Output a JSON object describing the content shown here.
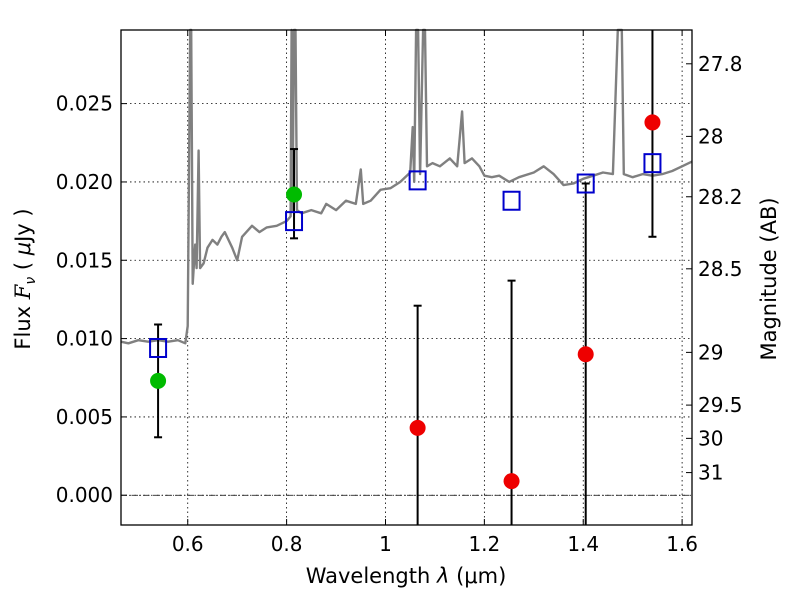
{
  "chart_data": {
    "type": "scatter",
    "xlabel": "Wavelength  λ (μm)",
    "ylabel": "Flux  F_ν  ( μJy )",
    "ylabel_parts": {
      "pre": "Flux  ",
      "var": "F",
      "sub": "ν",
      "unit_pre": "  ( ",
      "unit_mu": "μ",
      "unit_post": "Jy )"
    },
    "xlabel_parts": {
      "pre": "Wavelength  ",
      "var": "λ",
      "unit": " (μm)"
    },
    "y2label": "Magnitude (AB)",
    "xlim": [
      0.465,
      1.62
    ],
    "ylim": [
      -0.0019,
      0.0297
    ],
    "grid": true,
    "xticks": [
      {
        "value": 0.6,
        "label": "0.6"
      },
      {
        "value": 0.8,
        "label": "0.8"
      },
      {
        "value": 1.0,
        "label": "1"
      },
      {
        "value": 1.2,
        "label": "1.2"
      },
      {
        "value": 1.4,
        "label": "1.4"
      },
      {
        "value": 1.6,
        "label": "1.6"
      }
    ],
    "yticks": [
      {
        "value": 0.0,
        "label": "0.000"
      },
      {
        "value": 0.005,
        "label": "0.005"
      },
      {
        "value": 0.01,
        "label": "0.010"
      },
      {
        "value": 0.015,
        "label": "0.015"
      },
      {
        "value": 0.02,
        "label": "0.020"
      },
      {
        "value": 0.025,
        "label": "0.025"
      }
    ],
    "y2ticks": [
      {
        "mag": 27.8,
        "label": "27.8"
      },
      {
        "mag": 28.0,
        "label": "28"
      },
      {
        "mag": 28.2,
        "label": "28.2"
      },
      {
        "mag": 28.5,
        "label": "28.5"
      },
      {
        "mag": 29.0,
        "label": "29"
      },
      {
        "mag": 29.5,
        "label": "29.5"
      },
      {
        "mag": 30.0,
        "label": "30"
      },
      {
        "mag": 31.0,
        "label": "31"
      }
    ],
    "model_spectrum": {
      "name": "template spectrum",
      "color": "#808080",
      "points": [
        [
          0.465,
          0.0098
        ],
        [
          0.48,
          0.0097
        ],
        [
          0.5,
          0.0099
        ],
        [
          0.52,
          0.0098
        ],
        [
          0.54,
          0.0099
        ],
        [
          0.56,
          0.0098
        ],
        [
          0.58,
          0.0099
        ],
        [
          0.595,
          0.0097
        ],
        [
          0.6,
          0.0108
        ],
        [
          0.605,
          0.0298
        ],
        [
          0.607,
          0.0298
        ],
        [
          0.61,
          0.0135
        ],
        [
          0.615,
          0.016
        ],
        [
          0.618,
          0.0145
        ],
        [
          0.622,
          0.022
        ],
        [
          0.625,
          0.0145
        ],
        [
          0.632,
          0.0148
        ],
        [
          0.64,
          0.0158
        ],
        [
          0.65,
          0.0163
        ],
        [
          0.66,
          0.016
        ],
        [
          0.668,
          0.0165
        ],
        [
          0.675,
          0.0168
        ],
        [
          0.69,
          0.0158
        ],
        [
          0.7,
          0.015
        ],
        [
          0.71,
          0.0165
        ],
        [
          0.73,
          0.0172
        ],
        [
          0.745,
          0.0168
        ],
        [
          0.76,
          0.0171
        ],
        [
          0.78,
          0.0172
        ],
        [
          0.8,
          0.0175
        ],
        [
          0.808,
          0.0178
        ],
        [
          0.81,
          0.0298
        ],
        [
          0.812,
          0.0182
        ],
        [
          0.815,
          0.0298
        ],
        [
          0.818,
          0.0298
        ],
        [
          0.821,
          0.0182
        ],
        [
          0.83,
          0.018
        ],
        [
          0.85,
          0.0182
        ],
        [
          0.87,
          0.018
        ],
        [
          0.88,
          0.0186
        ],
        [
          0.9,
          0.0182
        ],
        [
          0.92,
          0.0188
        ],
        [
          0.94,
          0.0186
        ],
        [
          0.95,
          0.0208
        ],
        [
          0.955,
          0.0186
        ],
        [
          0.97,
          0.0188
        ],
        [
          0.99,
          0.0195
        ],
        [
          1.01,
          0.0196
        ],
        [
          1.03,
          0.02
        ],
        [
          1.05,
          0.0206
        ],
        [
          1.055,
          0.0235
        ],
        [
          1.058,
          0.02
        ],
        [
          1.062,
          0.0298
        ],
        [
          1.066,
          0.0298
        ],
        [
          1.07,
          0.0205
        ],
        [
          1.076,
          0.0298
        ],
        [
          1.08,
          0.0298
        ],
        [
          1.084,
          0.021
        ],
        [
          1.095,
          0.0212
        ],
        [
          1.11,
          0.021
        ],
        [
          1.13,
          0.0215
        ],
        [
          1.145,
          0.021
        ],
        [
          1.155,
          0.0245
        ],
        [
          1.16,
          0.0212
        ],
        [
          1.175,
          0.0215
        ],
        [
          1.19,
          0.021
        ],
        [
          1.2,
          0.0204
        ],
        [
          1.215,
          0.0203
        ],
        [
          1.23,
          0.0204
        ],
        [
          1.25,
          0.02
        ],
        [
          1.27,
          0.0203
        ],
        [
          1.3,
          0.0206
        ],
        [
          1.32,
          0.021
        ],
        [
          1.34,
          0.0205
        ],
        [
          1.36,
          0.0198
        ],
        [
          1.38,
          0.0199
        ],
        [
          1.4,
          0.0202
        ],
        [
          1.42,
          0.0204
        ],
        [
          1.44,
          0.0206
        ],
        [
          1.46,
          0.0205
        ],
        [
          1.47,
          0.0298
        ],
        [
          1.478,
          0.0298
        ],
        [
          1.482,
          0.0205
        ],
        [
          1.5,
          0.0203
        ],
        [
          1.52,
          0.0205
        ],
        [
          1.54,
          0.0204
        ],
        [
          1.56,
          0.0205
        ],
        [
          1.58,
          0.0207
        ],
        [
          1.6,
          0.021
        ],
        [
          1.62,
          0.0213
        ]
      ]
    },
    "series": [
      {
        "name": "model photometry",
        "marker": "open-square",
        "color": "#0000cc",
        "points": [
          {
            "x": 0.54,
            "y": 0.0094
          },
          {
            "x": 0.815,
            "y": 0.0175
          },
          {
            "x": 1.065,
            "y": 0.0201
          },
          {
            "x": 1.255,
            "y": 0.0188
          },
          {
            "x": 1.405,
            "y": 0.0199
          },
          {
            "x": 1.54,
            "y": 0.0212
          }
        ]
      },
      {
        "name": "detections",
        "marker": "filled-circle",
        "color": "#00bb00",
        "points": [
          {
            "x": 0.54,
            "y": 0.0073,
            "yerr_low": 0.0037,
            "yerr_high": 0.0109
          },
          {
            "x": 0.815,
            "y": 0.0192,
            "yerr_low": 0.0164,
            "yerr_high": 0.0221
          }
        ]
      },
      {
        "name": "non-detections",
        "marker": "filled-circle",
        "color": "#ee0000",
        "points": [
          {
            "x": 1.065,
            "y": 0.0043,
            "yerr_low": -0.0019,
            "yerr_high": 0.0121
          },
          {
            "x": 1.255,
            "y": 0.0009,
            "yerr_low": -0.0019,
            "yerr_high": 0.0137
          },
          {
            "x": 1.405,
            "y": 0.009,
            "yerr_low": -0.0019,
            "yerr_high": 0.0199
          },
          {
            "x": 1.54,
            "y": 0.0238,
            "yerr_low": 0.0165,
            "yerr_high": 0.0297
          }
        ]
      }
    ]
  }
}
